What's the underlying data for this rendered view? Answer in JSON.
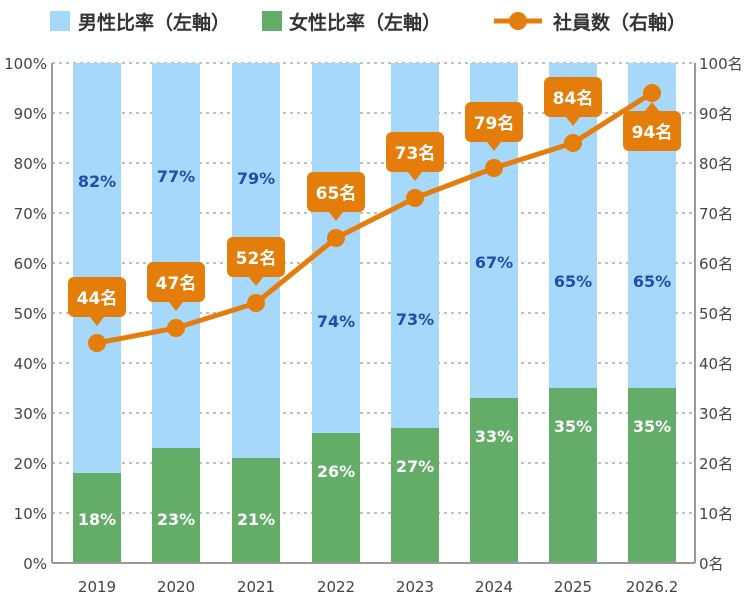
{
  "chart_data": {
    "type": "bar",
    "stacked": true,
    "categories": [
      "2019",
      "2020",
      "2021",
      "2022",
      "2023",
      "2024",
      "2025",
      "2026.2"
    ],
    "series": [
      {
        "name": "男性比率（左軸）",
        "axis": "left",
        "type": "bar",
        "color": "#a6d8fb",
        "values": [
          82,
          77,
          79,
          74,
          73,
          67,
          65,
          65
        ],
        "labels": [
          "82%",
          "77%",
          "79%",
          "74%",
          "73%",
          "67%",
          "65%",
          "65%"
        ]
      },
      {
        "name": "女性比率（左軸）",
        "axis": "left",
        "type": "bar",
        "color": "#63ad68",
        "values": [
          18,
          23,
          21,
          26,
          27,
          33,
          35,
          35
        ],
        "labels": [
          "18%",
          "23%",
          "21%",
          "26%",
          "27%",
          "33%",
          "35%",
          "35%"
        ]
      },
      {
        "name": "社員数（右軸）",
        "axis": "right",
        "type": "line",
        "color": "#e47d0a",
        "values": [
          44,
          47,
          52,
          65,
          73,
          79,
          84,
          94
        ],
        "labels": [
          "44名",
          "47名",
          "52名",
          "65名",
          "73名",
          "79名",
          "84名",
          "94名"
        ]
      }
    ],
    "left_axis": {
      "range": [
        0,
        100
      ],
      "ticks": [
        "0%",
        "10%",
        "20%",
        "30%",
        "40%",
        "50%",
        "60%",
        "70%",
        "80%",
        "90%",
        "100%"
      ]
    },
    "right_axis": {
      "range": [
        0,
        100
      ],
      "ticks": [
        "0名",
        "10名",
        "20名",
        "30名",
        "40名",
        "50名",
        "60名",
        "70名",
        "80名",
        "90名",
        "100名"
      ]
    },
    "grid": true,
    "legend_position": "top"
  }
}
